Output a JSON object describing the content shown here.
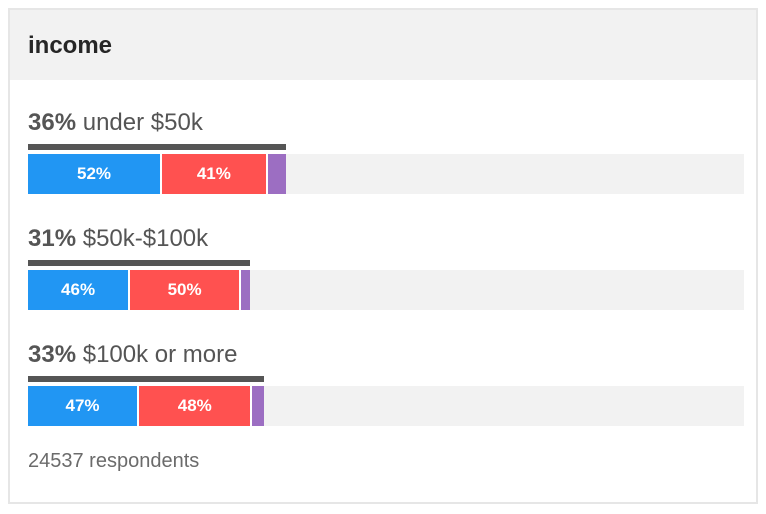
{
  "title": "income",
  "footer": "24537 respondents",
  "colors": {
    "blue": "#2196f3",
    "red": "#ff5150",
    "purple": "#9c6ec2",
    "track": "#f2f2f2",
    "share_line": "#555555"
  },
  "chart_data": {
    "type": "bar",
    "title": "income",
    "groups": [
      {
        "share": "36%",
        "name": "under $50k",
        "share_value": 36,
        "segments": [
          {
            "label": "52%",
            "value": 52
          },
          {
            "label": "41%",
            "value": 41
          },
          {
            "label": "",
            "value": 7
          }
        ]
      },
      {
        "share": "31%",
        "name": "$50k-$100k",
        "share_value": 31,
        "segments": [
          {
            "label": "46%",
            "value": 46
          },
          {
            "label": "50%",
            "value": 50
          },
          {
            "label": "",
            "value": 4
          }
        ]
      },
      {
        "share": "33%",
        "name": "$100k or more",
        "share_value": 33,
        "segments": [
          {
            "label": "47%",
            "value": 47
          },
          {
            "label": "48%",
            "value": 48
          },
          {
            "label": "",
            "value": 5
          }
        ]
      }
    ],
    "segment_colors": [
      "#2196f3",
      "#ff5150",
      "#9c6ec2"
    ]
  }
}
